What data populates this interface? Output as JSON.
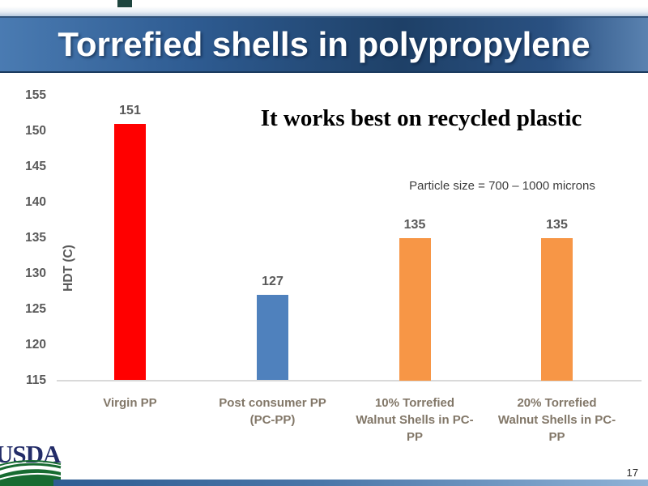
{
  "slide": {
    "title": "Torrefied shells in polypropylene",
    "headline": "It works best on recycled plastic",
    "page_number": "17",
    "logo_text": "USDA"
  },
  "colors": {
    "banner_gradient_left": "#4a7bb2",
    "banner_gradient_mid": "#1e4067",
    "banner_gradient_right": "#5a82b0",
    "bar_red": "#ff0000",
    "bar_blue": "#4f81bd",
    "bar_orange": "#f79646",
    "value_label_gray": "#595959",
    "category_label_gray": "#827768",
    "axis_line_gray": "#d9d9d9",
    "usda_navy": "#232c68",
    "usda_green": "#176b31",
    "bottom_bar_blue": "#2f5d92",
    "top_accent_teal": "#1e453e"
  },
  "chart_data": {
    "type": "bar",
    "categories": [
      "Virgin PP",
      "Post consumer PP (PC-PP)",
      "10% Torrefied Walnut Shells in PC-PP",
      "20% Torrefied Walnut Shells in PC-PP"
    ],
    "category_lines": [
      [
        "Virgin PP"
      ],
      [
        "Post consumer PP",
        "(PC-PP)"
      ],
      [
        "10% Torrefied",
        "Walnut Shells in PC-",
        "PP"
      ],
      [
        "20% Torrefied",
        "Walnut Shells in PC-",
        "PP"
      ]
    ],
    "values": [
      151,
      127,
      135,
      135
    ],
    "data_labels": [
      "151",
      "127",
      "135",
      "135"
    ],
    "bar_colors": [
      "#ff0000",
      "#4f81bd",
      "#f79646",
      "#f79646"
    ],
    "ylabel": "HDT (C)",
    "ylim": [
      115,
      155
    ],
    "ytick_step": 5,
    "yticks": [
      155,
      150,
      145,
      140,
      135,
      130,
      125,
      120,
      115
    ],
    "grid": false,
    "legend": false,
    "annotation": "Particle size = 700 – 1000 microns"
  }
}
